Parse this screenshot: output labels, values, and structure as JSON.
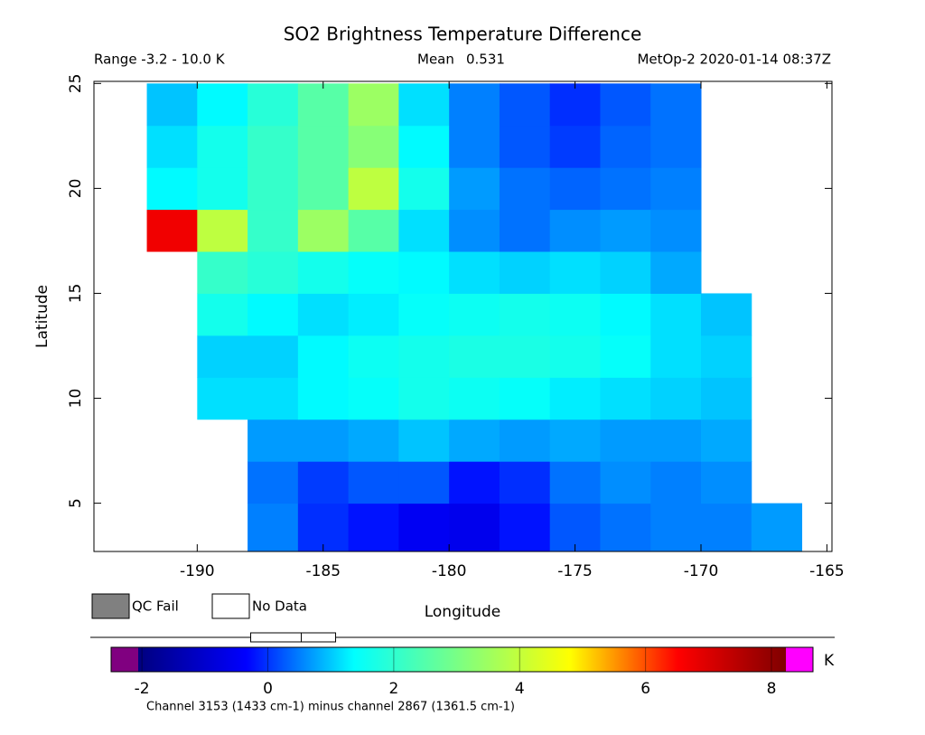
{
  "chart_data": {
    "type": "heatmap",
    "title": "SO2 Brightness Temperature Difference",
    "range_text": "Range -3.2 - 10.0 K",
    "mean_label": "Mean",
    "mean": 0.531,
    "source": "MetOp-2 2020-01-14 08:37Z",
    "x_label": "Longitude",
    "y_label": "Latitude",
    "xlim": [
      -194.1,
      -164.8
    ],
    "ylim": [
      2.7,
      25.1
    ],
    "xticks": [
      -190,
      -185,
      -180,
      -175,
      -170,
      -165
    ],
    "yticks": [
      5,
      10,
      15,
      20,
      25
    ],
    "x_edges": [
      -194,
      -192,
      -190,
      -188,
      -186,
      -184,
      -182,
      -180,
      -178,
      -176,
      -174,
      -172,
      -170,
      -168,
      -166
    ],
    "y_edges": [
      2.7,
      5,
      7,
      9,
      11,
      13,
      15,
      17,
      19,
      21,
      23,
      25
    ],
    "values": [
      [
        null,
        null,
        null,
        0.3,
        -0.3,
        -0.5,
        -0.8,
        -0.9,
        -0.5,
        0,
        0.2,
        0.3,
        0.3,
        0.5
      ],
      [
        null,
        null,
        null,
        0.2,
        -0.2,
        0,
        0,
        -0.5,
        -0.3,
        0.2,
        0.4,
        0.3,
        0.4,
        null
      ],
      [
        null,
        null,
        null,
        0.5,
        0.5,
        0.6,
        0.8,
        0.6,
        0.5,
        0.6,
        0.5,
        0.5,
        0.6,
        null
      ],
      [
        null,
        null,
        1.0,
        1.0,
        1.2,
        1.3,
        1.5,
        1.4,
        1.3,
        1.1,
        1.0,
        0.9,
        0.8,
        null
      ],
      [
        null,
        null,
        0.9,
        0.9,
        1.2,
        1.4,
        1.5,
        1.6,
        1.6,
        1.5,
        1.3,
        1.0,
        0.9,
        null
      ],
      [
        null,
        null,
        1.5,
        1.2,
        1.0,
        1.1,
        1.3,
        1.4,
        1.5,
        1.4,
        1.2,
        1.0,
        0.8,
        null
      ],
      [
        null,
        null,
        2.0,
        1.8,
        1.5,
        1.3,
        1.2,
        1.0,
        0.9,
        1.0,
        0.9,
        0.6,
        null,
        null
      ],
      [
        null,
        7.0,
        4.0,
        2.0,
        3.5,
        2.5,
        1.0,
        0.4,
        0.2,
        0.4,
        0.5,
        0.4,
        null,
        null
      ],
      [
        null,
        1.2,
        1.5,
        2.0,
        2.5,
        4.0,
        1.5,
        0.5,
        0.2,
        0.1,
        0.2,
        0.3,
        null,
        null
      ],
      [
        null,
        1.0,
        1.5,
        2.0,
        2.5,
        3.2,
        1.2,
        0.3,
        0.0,
        -0.2,
        0.1,
        0.2,
        null,
        null
      ],
      [
        null,
        0.8,
        1.2,
        1.8,
        2.5,
        3.5,
        1.0,
        0.3,
        0.0,
        -0.3,
        0.0,
        0.2,
        null,
        null
      ]
    ],
    "colorbar": {
      "clim": [
        -2.49,
        8.66
      ],
      "ticks": [
        -2,
        0,
        2,
        4,
        6,
        8
      ],
      "unit": "K",
      "colormap": [
        "#00007f",
        "#0000ff",
        "#00ffff",
        "#7fff7f",
        "#ffff00",
        "#ff0000",
        "#7f0000"
      ]
    },
    "legend": [
      {
        "name": "QC Fail",
        "color": "#808080"
      },
      {
        "name": "No Data",
        "color": "#ffffff"
      }
    ],
    "footnote": "Channel 3153 (1433 cm-1) minus channel 2867 (1361.5 cm-1)"
  }
}
